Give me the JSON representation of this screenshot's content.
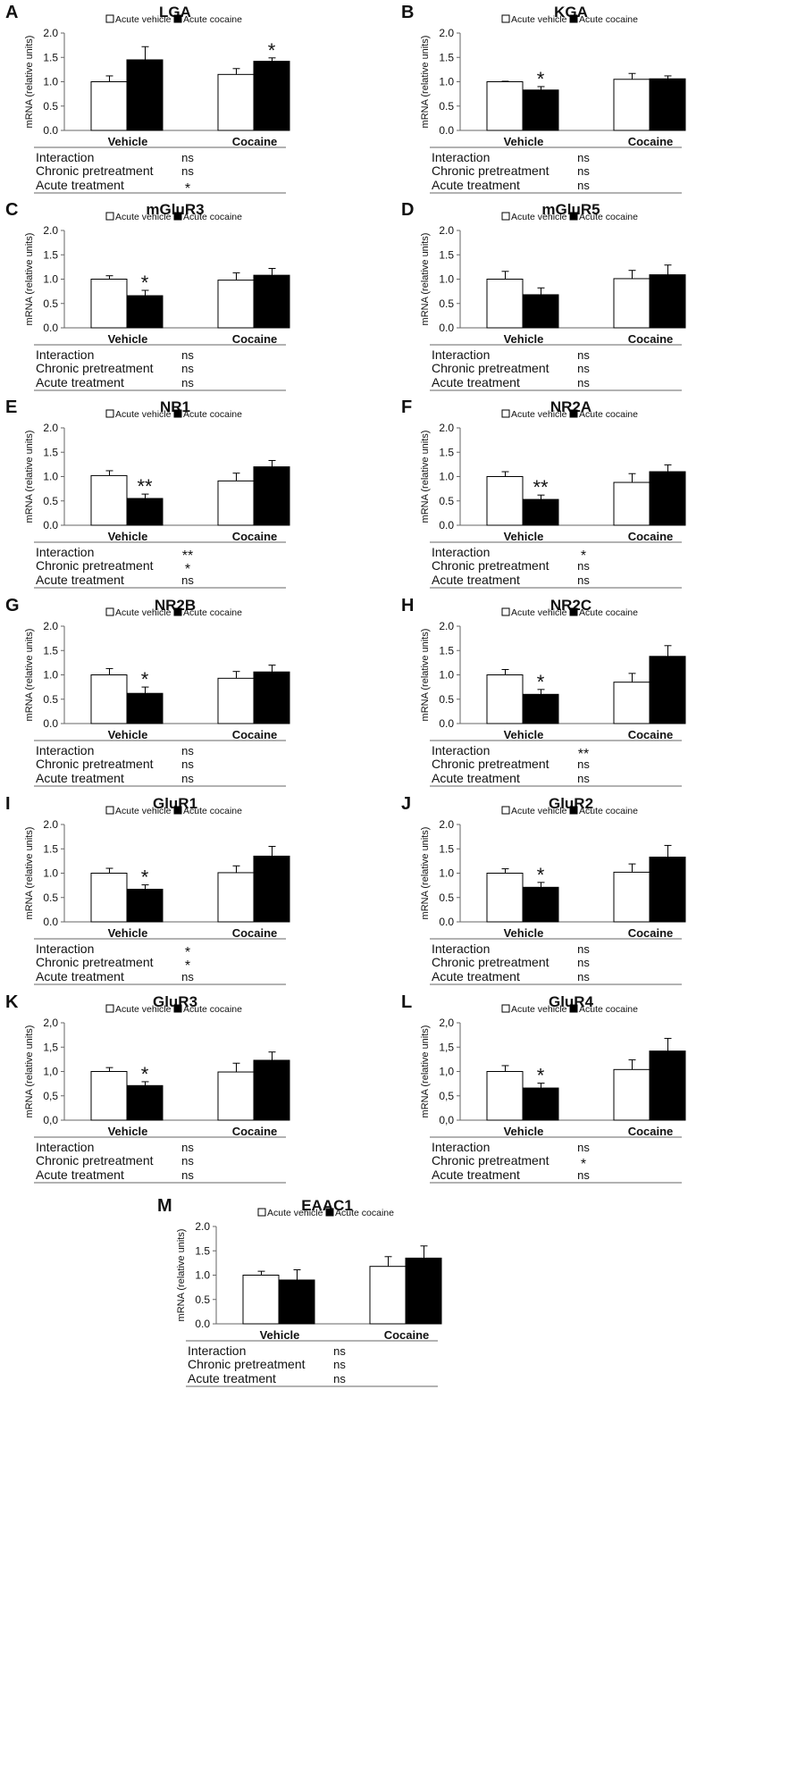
{
  "figure": {
    "legend": {
      "white": "Acute vehicle",
      "black": "Acute cocaine"
    },
    "colors": {
      "bar_vehicle": "#ffffff",
      "bar_cocaine": "#000000",
      "axis": "#666666"
    }
  },
  "chart_data": [
    {
      "panel": "A",
      "type": "bar",
      "title": "LGA",
      "ylabel": "mRNA (relative units)",
      "ylim": [
        0,
        2
      ],
      "yticks": [
        "0.0",
        "0.5",
        "1.0",
        "1.5",
        "2.0"
      ],
      "categories": [
        "Vehicle",
        "Cocaine"
      ],
      "series": [
        {
          "name": "Acute vehicle",
          "values": [
            1.0,
            1.15
          ],
          "errors": [
            0.12,
            0.12
          ]
        },
        {
          "name": "Acute cocaine",
          "values": [
            1.45,
            1.42
          ],
          "errors": [
            0.27,
            0.07
          ]
        }
      ],
      "significance": [
        {
          "series": 1,
          "category": 1,
          "mark": "*"
        }
      ],
      "stats": [
        {
          "label": "Interaction",
          "value": "ns"
        },
        {
          "label": "Chronic pretreatment",
          "value": "ns"
        },
        {
          "label": "Acute treatment",
          "value": "*"
        }
      ]
    },
    {
      "panel": "B",
      "type": "bar",
      "title": "KGA",
      "ylabel": "mRNA (relative units)",
      "ylim": [
        0,
        2
      ],
      "yticks": [
        "0.0",
        "0.5",
        "1.0",
        "1.5",
        "2.0"
      ],
      "categories": [
        "Vehicle",
        "Cocaine"
      ],
      "series": [
        {
          "name": "Acute vehicle",
          "values": [
            1.0,
            1.05
          ],
          "errors": [
            0.01,
            0.12
          ]
        },
        {
          "name": "Acute cocaine",
          "values": [
            0.83,
            1.06
          ],
          "errors": [
            0.07,
            0.06
          ]
        }
      ],
      "significance": [
        {
          "series": 1,
          "category": 0,
          "mark": "*"
        }
      ],
      "stats": [
        {
          "label": "Interaction",
          "value": "ns"
        },
        {
          "label": "Chronic pretreatment",
          "value": "ns"
        },
        {
          "label": "Acute treatment",
          "value": "ns"
        }
      ]
    },
    {
      "panel": "C",
      "type": "bar",
      "title": "mGluR3",
      "ylabel": "mRNA (relative units)",
      "ylim": [
        0,
        2
      ],
      "yticks": [
        "0.0",
        "0.5",
        "1.0",
        "1.5",
        "2.0"
      ],
      "categories": [
        "Vehicle",
        "Cocaine"
      ],
      "series": [
        {
          "name": "Acute vehicle",
          "values": [
            1.0,
            0.98
          ],
          "errors": [
            0.07,
            0.15
          ]
        },
        {
          "name": "Acute cocaine",
          "values": [
            0.66,
            1.08
          ],
          "errors": [
            0.11,
            0.14
          ]
        }
      ],
      "significance": [
        {
          "series": 1,
          "category": 0,
          "mark": "*"
        }
      ],
      "stats": [
        {
          "label": "Interaction",
          "value": "ns"
        },
        {
          "label": "Chronic pretreatment",
          "value": "ns"
        },
        {
          "label": "Acute treatment",
          "value": "ns"
        }
      ]
    },
    {
      "panel": "D",
      "type": "bar",
      "title": "mGluR5",
      "ylabel": "mRNA (relative units)",
      "ylim": [
        0,
        2
      ],
      "yticks": [
        "0.0",
        "0.5",
        "1.0",
        "1.5",
        "2.0"
      ],
      "categories": [
        "Vehicle",
        "Cocaine"
      ],
      "series": [
        {
          "name": "Acute vehicle",
          "values": [
            1.0,
            1.01
          ],
          "errors": [
            0.16,
            0.17
          ]
        },
        {
          "name": "Acute cocaine",
          "values": [
            0.68,
            1.09
          ],
          "errors": [
            0.14,
            0.2
          ]
        }
      ],
      "significance": [],
      "stats": [
        {
          "label": "Interaction",
          "value": "ns"
        },
        {
          "label": "Chronic pretreatment",
          "value": "ns"
        },
        {
          "label": "Acute treatment",
          "value": "ns"
        }
      ]
    },
    {
      "panel": "E",
      "type": "bar",
      "title": "NR1",
      "ylabel": "mRNA (relative units)",
      "ylim": [
        0,
        2
      ],
      "yticks": [
        "0.0",
        "0.5",
        "1.0",
        "1.5",
        "2.0"
      ],
      "categories": [
        "Vehicle",
        "Cocaine"
      ],
      "series": [
        {
          "name": "Acute vehicle",
          "values": [
            1.02,
            0.91
          ],
          "errors": [
            0.1,
            0.16
          ]
        },
        {
          "name": "Acute cocaine",
          "values": [
            0.55,
            1.2
          ],
          "errors": [
            0.09,
            0.13
          ]
        }
      ],
      "significance": [
        {
          "series": 1,
          "category": 0,
          "mark": "**"
        }
      ],
      "stats": [
        {
          "label": "Interaction",
          "value": "**"
        },
        {
          "label": "Chronic pretreatment",
          "value": "*"
        },
        {
          "label": "Acute treatment",
          "value": "ns"
        }
      ]
    },
    {
      "panel": "F",
      "type": "bar",
      "title": "NR2A",
      "ylabel": "mRNA (relative units)",
      "ylim": [
        0,
        2
      ],
      "yticks": [
        "0.0",
        "0.5",
        "1.0",
        "1.5",
        "2.0"
      ],
      "categories": [
        "Vehicle",
        "Cocaine"
      ],
      "series": [
        {
          "name": "Acute vehicle",
          "values": [
            1.0,
            0.88
          ],
          "errors": [
            0.1,
            0.18
          ]
        },
        {
          "name": "Acute cocaine",
          "values": [
            0.53,
            1.1
          ],
          "errors": [
            0.09,
            0.14
          ]
        }
      ],
      "significance": [
        {
          "series": 1,
          "category": 0,
          "mark": "**"
        }
      ],
      "stats": [
        {
          "label": "Interaction",
          "value": "*"
        },
        {
          "label": "Chronic pretreatment",
          "value": "ns"
        },
        {
          "label": "Acute treatment",
          "value": "ns"
        }
      ]
    },
    {
      "panel": "G",
      "type": "bar",
      "title": "NR2B",
      "ylabel": "mRNA (relative units)",
      "ylim": [
        0,
        2
      ],
      "yticks": [
        "0.0",
        "0.5",
        "1.0",
        "1.5",
        "2.0"
      ],
      "categories": [
        "Vehicle",
        "Cocaine"
      ],
      "series": [
        {
          "name": "Acute vehicle",
          "values": [
            1.0,
            0.93
          ],
          "errors": [
            0.13,
            0.14
          ]
        },
        {
          "name": "Acute cocaine",
          "values": [
            0.62,
            1.06
          ],
          "errors": [
            0.13,
            0.14
          ]
        }
      ],
      "significance": [
        {
          "series": 1,
          "category": 0,
          "mark": "*"
        }
      ],
      "stats": [
        {
          "label": "Interaction",
          "value": "ns"
        },
        {
          "label": "Chronic pretreatment",
          "value": "ns"
        },
        {
          "label": "Acute treatment",
          "value": "ns"
        }
      ]
    },
    {
      "panel": "H",
      "type": "bar",
      "title": "NR2C",
      "ylabel": "mRNA (relative units)",
      "ylim": [
        0,
        2
      ],
      "yticks": [
        "0.0",
        "0.5",
        "1.0",
        "1.5",
        "2.0"
      ],
      "categories": [
        "Vehicle",
        "Cocaine"
      ],
      "series": [
        {
          "name": "Acute vehicle",
          "values": [
            1.0,
            0.85
          ],
          "errors": [
            0.11,
            0.18
          ]
        },
        {
          "name": "Acute cocaine",
          "values": [
            0.6,
            1.38
          ],
          "errors": [
            0.1,
            0.22
          ]
        }
      ],
      "significance": [
        {
          "series": 1,
          "category": 0,
          "mark": "*"
        }
      ],
      "stats": [
        {
          "label": "Interaction",
          "value": "**"
        },
        {
          "label": "Chronic pretreatment",
          "value": "ns"
        },
        {
          "label": "Acute treatment",
          "value": "ns"
        }
      ]
    },
    {
      "panel": "I",
      "type": "bar",
      "title": "GluR1",
      "ylabel": "mRNA (relative units)",
      "ylim": [
        0,
        2
      ],
      "yticks": [
        "0.0",
        "0.5",
        "1.0",
        "1.5",
        "2.0"
      ],
      "categories": [
        "Vehicle",
        "Cocaine"
      ],
      "series": [
        {
          "name": "Acute vehicle",
          "values": [
            1.0,
            1.01
          ],
          "errors": [
            0.1,
            0.14
          ]
        },
        {
          "name": "Acute cocaine",
          "values": [
            0.67,
            1.35
          ],
          "errors": [
            0.09,
            0.2
          ]
        }
      ],
      "significance": [
        {
          "series": 1,
          "category": 0,
          "mark": "*"
        }
      ],
      "stats": [
        {
          "label": "Interaction",
          "value": "*"
        },
        {
          "label": "Chronic pretreatment",
          "value": "*"
        },
        {
          "label": "Acute treatment",
          "value": "ns"
        }
      ]
    },
    {
      "panel": "J",
      "type": "bar",
      "title": "GluR2",
      "ylabel": "mRNA (relative units)",
      "ylim": [
        0,
        2
      ],
      "yticks": [
        "0.0",
        "0.5",
        "1.0",
        "1.5",
        "2.0"
      ],
      "categories": [
        "Vehicle",
        "Cocaine"
      ],
      "series": [
        {
          "name": "Acute vehicle",
          "values": [
            1.0,
            1.02
          ],
          "errors": [
            0.09,
            0.17
          ]
        },
        {
          "name": "Acute cocaine",
          "values": [
            0.71,
            1.33
          ],
          "errors": [
            0.1,
            0.24
          ]
        }
      ],
      "significance": [
        {
          "series": 1,
          "category": 0,
          "mark": "*"
        }
      ],
      "stats": [
        {
          "label": "Interaction",
          "value": "ns"
        },
        {
          "label": "Chronic pretreatment",
          "value": "ns"
        },
        {
          "label": "Acute treatment",
          "value": "ns"
        }
      ]
    },
    {
      "panel": "K",
      "type": "bar",
      "title": "GluR3",
      "ylabel": "mRNA (relative units)",
      "ylim": [
        0,
        2
      ],
      "yticks": [
        "0,0",
        "0,5",
        "1,0",
        "1,5",
        "2,0"
      ],
      "categories": [
        "Vehicle",
        "Cocaine"
      ],
      "series": [
        {
          "name": "Acute vehicle",
          "values": [
            1.0,
            0.99
          ],
          "errors": [
            0.08,
            0.18
          ]
        },
        {
          "name": "Acute cocaine",
          "values": [
            0.71,
            1.23
          ],
          "errors": [
            0.08,
            0.17
          ]
        }
      ],
      "significance": [
        {
          "series": 1,
          "category": 0,
          "mark": "*"
        }
      ],
      "stats": [
        {
          "label": "Interaction",
          "value": "ns"
        },
        {
          "label": "Chronic pretreatment",
          "value": "ns"
        },
        {
          "label": "Acute treatment",
          "value": "ns"
        }
      ]
    },
    {
      "panel": "L",
      "type": "bar",
      "title": "GluR4",
      "ylabel": "mRNA (relative units)",
      "ylim": [
        0,
        2
      ],
      "yticks": [
        "0,0",
        "0,5",
        "1,0",
        "1,5",
        "2,0"
      ],
      "categories": [
        "Vehicle",
        "Cocaine"
      ],
      "series": [
        {
          "name": "Acute vehicle",
          "values": [
            1.0,
            1.04
          ],
          "errors": [
            0.12,
            0.2
          ]
        },
        {
          "name": "Acute cocaine",
          "values": [
            0.66,
            1.42
          ],
          "errors": [
            0.1,
            0.26
          ]
        }
      ],
      "significance": [
        {
          "series": 1,
          "category": 0,
          "mark": "*"
        }
      ],
      "stats": [
        {
          "label": "Interaction",
          "value": "ns"
        },
        {
          "label": "Chronic pretreatment",
          "value": "*"
        },
        {
          "label": "Acute treatment",
          "value": "ns"
        }
      ]
    },
    {
      "panel": "M",
      "type": "bar",
      "title": "EAAC1",
      "ylabel": "mRNA (relative units)",
      "ylim": [
        0,
        2
      ],
      "yticks": [
        "0.0",
        "0.5",
        "1.0",
        "1.5",
        "2.0"
      ],
      "categories": [
        "Vehicle",
        "Cocaine"
      ],
      "series": [
        {
          "name": "Acute vehicle",
          "values": [
            1.0,
            1.18
          ],
          "errors": [
            0.08,
            0.2
          ]
        },
        {
          "name": "Acute cocaine",
          "values": [
            0.9,
            1.35
          ],
          "errors": [
            0.21,
            0.25
          ]
        }
      ],
      "significance": [],
      "stats": [
        {
          "label": "Interaction",
          "value": "ns"
        },
        {
          "label": "Chronic pretreatment",
          "value": "ns"
        },
        {
          "label": "Acute treatment",
          "value": "ns"
        }
      ]
    }
  ]
}
